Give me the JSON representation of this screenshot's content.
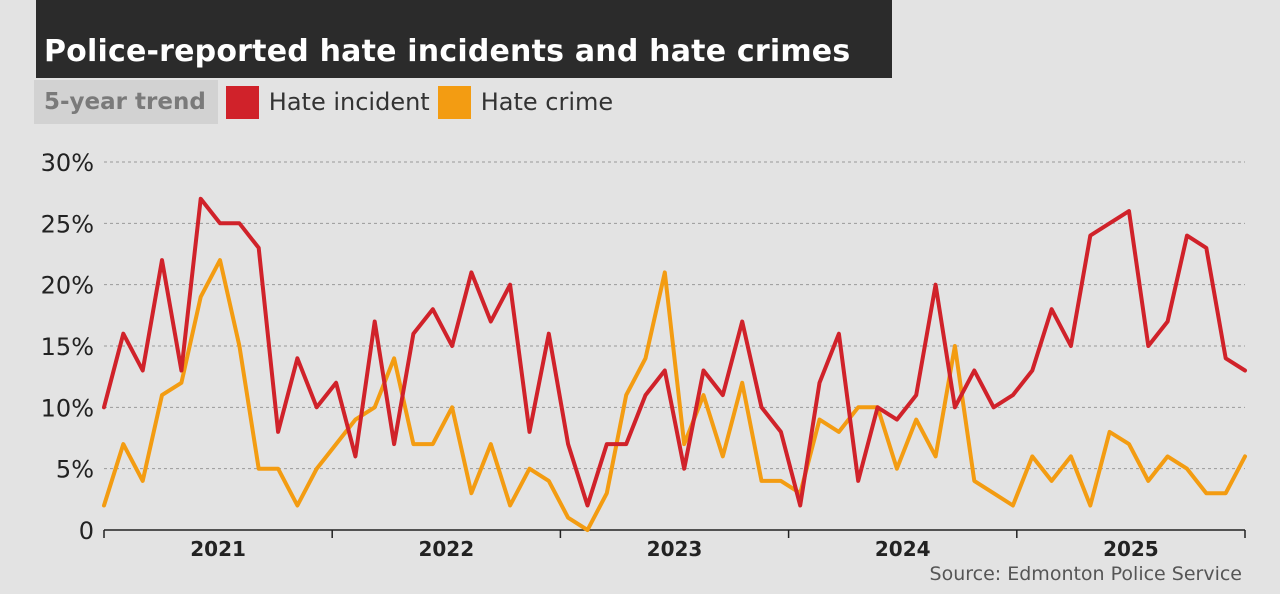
{
  "title": "Police-reported hate incidents and hate crimes",
  "legend": {
    "label": "5-year trend",
    "items": [
      {
        "name": "Hate incident",
        "color": "#d0222a"
      },
      {
        "name": "Hate crime",
        "color": "#f39c12"
      }
    ]
  },
  "source": "Source: Edmonton Police Service",
  "chart_data": {
    "type": "line",
    "ylim": [
      0,
      30
    ],
    "yticks": [
      {
        "value": 0,
        "label": "0"
      },
      {
        "value": 5,
        "label": "5%"
      },
      {
        "value": 10,
        "label": "10%"
      },
      {
        "value": 15,
        "label": "15%"
      },
      {
        "value": 20,
        "label": "20%"
      },
      {
        "value": 25,
        "label": "25%"
      },
      {
        "value": 30,
        "label": "30%"
      }
    ],
    "grid": true,
    "xlabels": [
      "2021",
      "2022",
      "2023",
      "2024",
      "2025"
    ],
    "months_per_year": 12,
    "series": [
      {
        "name": "Hate incident",
        "color": "#d0222a",
        "values": [
          10,
          16,
          13,
          22,
          13,
          27,
          25,
          25,
          23,
          8,
          14,
          10,
          12,
          6,
          17,
          7,
          16,
          18,
          15,
          21,
          17,
          20,
          8,
          16,
          7,
          2,
          7,
          7,
          11,
          13,
          5,
          13,
          11,
          17,
          10,
          8,
          2,
          12,
          16,
          4,
          10,
          9,
          11,
          20,
          10,
          13,
          10,
          11,
          13,
          18,
          15,
          24,
          25,
          26,
          15,
          17,
          24,
          23,
          14,
          13
        ]
      },
      {
        "name": "Hate crime",
        "color": "#f39c12",
        "values": [
          2,
          7,
          4,
          11,
          12,
          19,
          22,
          15,
          5,
          5,
          2,
          5,
          7,
          9,
          10,
          14,
          7,
          7,
          10,
          3,
          7,
          2,
          5,
          4,
          1,
          0,
          3,
          11,
          14,
          21,
          7,
          11,
          6,
          12,
          4,
          4,
          3,
          9,
          8,
          10,
          10,
          5,
          9,
          6,
          15,
          4,
          3,
          2,
          6,
          4,
          6,
          2,
          8,
          7,
          4,
          6,
          5,
          3,
          3,
          6
        ]
      }
    ]
  }
}
